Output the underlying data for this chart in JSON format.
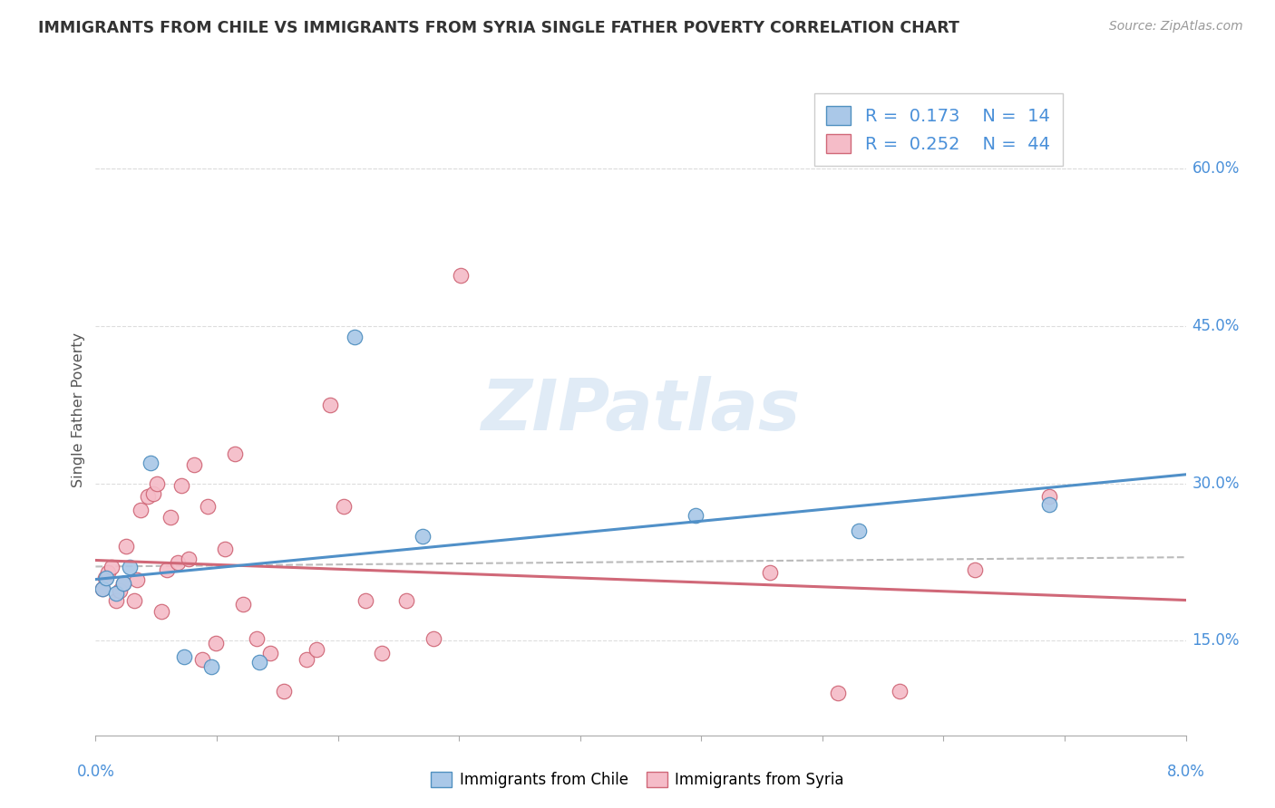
{
  "title": "IMMIGRANTS FROM CHILE VS IMMIGRANTS FROM SYRIA SINGLE FATHER POVERTY CORRELATION CHART",
  "source": "Source: ZipAtlas.com",
  "ylabel": "Single Father Poverty",
  "right_ytick_vals": [
    0.15,
    0.3,
    0.45,
    0.6
  ],
  "right_ytick_labels": [
    "15.0%",
    "30.0%",
    "45.0%",
    "60.0%"
  ],
  "xlim": [
    0.0,
    0.08
  ],
  "ylim": [
    0.06,
    0.68
  ],
  "watermark": "ZIPatlas",
  "legend_r1": "0.173",
  "legend_n1": "14",
  "legend_r2": "0.252",
  "legend_n2": "44",
  "chile_color": "#aac8e8",
  "syria_color": "#f5bcc8",
  "chile_edge": "#5090c0",
  "syria_edge": "#d06878",
  "line_chile": "#5090c8",
  "line_syria": "#d06878",
  "line_dashed_color": "#bbbbbb",
  "chile_x": [
    0.0005,
    0.0008,
    0.0015,
    0.002,
    0.0025,
    0.004,
    0.0065,
    0.0085,
    0.012,
    0.019,
    0.024,
    0.044,
    0.056,
    0.07
  ],
  "chile_y": [
    0.2,
    0.21,
    0.195,
    0.205,
    0.22,
    0.32,
    0.135,
    0.125,
    0.13,
    0.44,
    0.25,
    0.27,
    0.255,
    0.28
  ],
  "syria_x": [
    0.0005,
    0.0007,
    0.0009,
    0.0012,
    0.0015,
    0.0018,
    0.002,
    0.0022,
    0.0028,
    0.003,
    0.0033,
    0.0038,
    0.0042,
    0.0045,
    0.0048,
    0.0052,
    0.0055,
    0.006,
    0.0063,
    0.0068,
    0.0072,
    0.0078,
    0.0082,
    0.0088,
    0.0095,
    0.0102,
    0.0108,
    0.0118,
    0.0128,
    0.0138,
    0.0155,
    0.0162,
    0.0172,
    0.0182,
    0.0198,
    0.021,
    0.0228,
    0.0248,
    0.0268,
    0.0495,
    0.0545,
    0.059,
    0.0645,
    0.07
  ],
  "syria_y": [
    0.2,
    0.21,
    0.215,
    0.22,
    0.188,
    0.198,
    0.205,
    0.24,
    0.188,
    0.208,
    0.275,
    0.288,
    0.29,
    0.3,
    0.178,
    0.218,
    0.268,
    0.225,
    0.298,
    0.228,
    0.318,
    0.132,
    0.278,
    0.148,
    0.238,
    0.328,
    0.185,
    0.152,
    0.138,
    0.102,
    0.132,
    0.142,
    0.375,
    0.278,
    0.188,
    0.138,
    0.188,
    0.152,
    0.498,
    0.215,
    0.1,
    0.102,
    0.218,
    0.288
  ]
}
